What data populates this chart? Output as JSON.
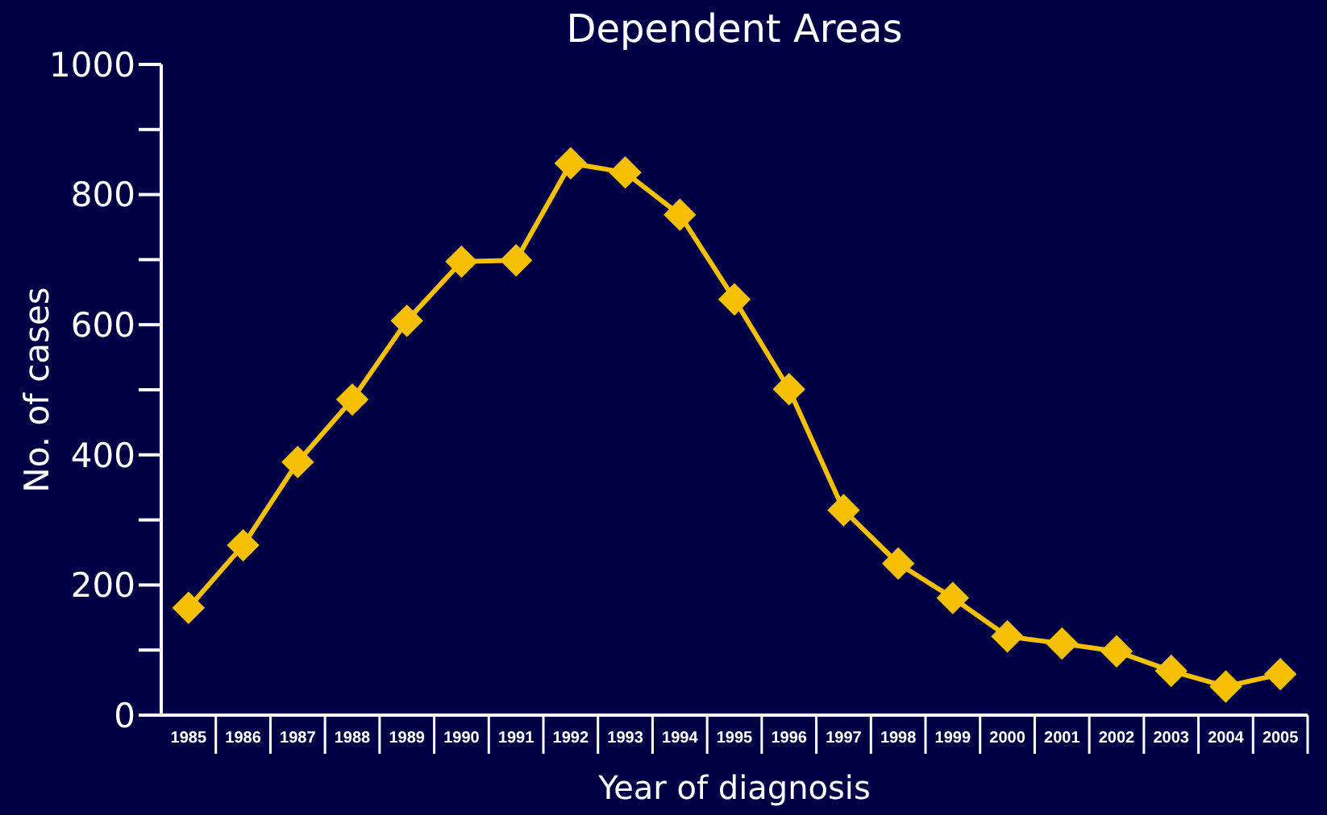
{
  "chart_data": {
    "type": "line",
    "title": "Dependent Areas",
    "xlabel": "Year of diagnosis",
    "ylabel": "No. of cases",
    "categories": [
      "1985",
      "1986",
      "1987",
      "1988",
      "1989",
      "1990",
      "1991",
      "1992",
      "1993",
      "1994",
      "1995",
      "1996",
      "1997",
      "1998",
      "1999",
      "2000",
      "2001",
      "2002",
      "2003",
      "2004",
      "2005"
    ],
    "series": [
      {
        "color": "#f5c000",
        "values": [
          165,
          261,
          389,
          485,
          606,
          697,
          699,
          848,
          834,
          769,
          639,
          501,
          315,
          233,
          180,
          121,
          110,
          98,
          68,
          44,
          63
        ]
      }
    ],
    "ylim": [
      0,
      1000
    ],
    "yticks": [
      0,
      {
        "value": 100,
        "label": null
      },
      200,
      {
        "value": 300,
        "label": null
      },
      400,
      {
        "value": 500,
        "label": null
      },
      600,
      {
        "value": 700,
        "label": null
      },
      800,
      {
        "value": 900,
        "label": null
      },
      1000
    ],
    "grid": false,
    "marker": "diamond",
    "line_style": "solid"
  }
}
